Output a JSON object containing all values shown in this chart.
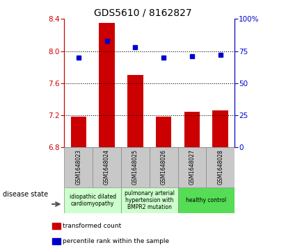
{
  "title": "GDS5610 / 8162827",
  "samples": [
    "GSM1648023",
    "GSM1648024",
    "GSM1648025",
    "GSM1648026",
    "GSM1648027",
    "GSM1648028"
  ],
  "bar_values": [
    7.18,
    8.35,
    7.7,
    7.18,
    7.24,
    7.26
  ],
  "bar_baseline": 6.8,
  "percentile_values": [
    70,
    83,
    78,
    70,
    71,
    72
  ],
  "bar_color": "#cc0000",
  "dot_color": "#0000cc",
  "ylim_left": [
    6.8,
    8.4
  ],
  "ylim_right": [
    0,
    100
  ],
  "yticks_left": [
    6.8,
    7.2,
    7.6,
    8.0,
    8.4
  ],
  "yticks_right": [
    0,
    25,
    50,
    75,
    100
  ],
  "hlines": [
    8.0,
    7.6,
    7.2
  ],
  "disease_groups": [
    {
      "label": "idiopathic dilated\ncardiomyopathy",
      "indices": [
        0,
        1
      ],
      "color": "#ccffcc"
    },
    {
      "label": "pulmonary arterial\nhypertension with\nBMPR2 mutation",
      "indices": [
        2,
        3
      ],
      "color": "#ccffcc"
    },
    {
      "label": "healthy control",
      "indices": [
        4,
        5
      ],
      "color": "#55dd55"
    }
  ],
  "legend_bar_label": "transformed count",
  "legend_dot_label": "percentile rank within the sample",
  "disease_state_label": "disease state",
  "xlabel_row_bg": "#c8c8c8",
  "title_fontsize": 10,
  "tick_fontsize": 7.5,
  "bar_width": 0.55
}
